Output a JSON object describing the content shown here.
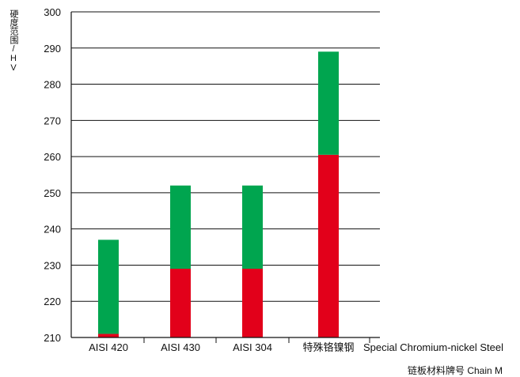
{
  "chart_data": {
    "type": "bar",
    "stacked": "range",
    "ylabel": "硬度范围/HV",
    "xlabel": "链板材料牌号 Chain M",
    "ylim": [
      210,
      300
    ],
    "yticks": [
      210,
      220,
      230,
      240,
      250,
      260,
      270,
      280,
      290,
      300
    ],
    "grid": true,
    "categories": [
      "AISI 420",
      "AISI 430",
      "AISI 304",
      "特殊铬镍钢"
    ],
    "category_extra_label": "Special Chromium-nickel Steel",
    "ranges": [
      {
        "category": "AISI 420",
        "low": 210,
        "mid": 211,
        "high": 237
      },
      {
        "category": "AISI 430",
        "low": 210,
        "mid": 229,
        "high": 252
      },
      {
        "category": "AISI 304",
        "low": 210,
        "mid": 229,
        "high": 252
      },
      {
        "category": "特殊铬镍钢",
        "low": 210,
        "mid": 260.5,
        "high": 289
      }
    ],
    "colors": {
      "lower": "#e2001a",
      "upper": "#00a54f",
      "axis": "#111111"
    }
  }
}
